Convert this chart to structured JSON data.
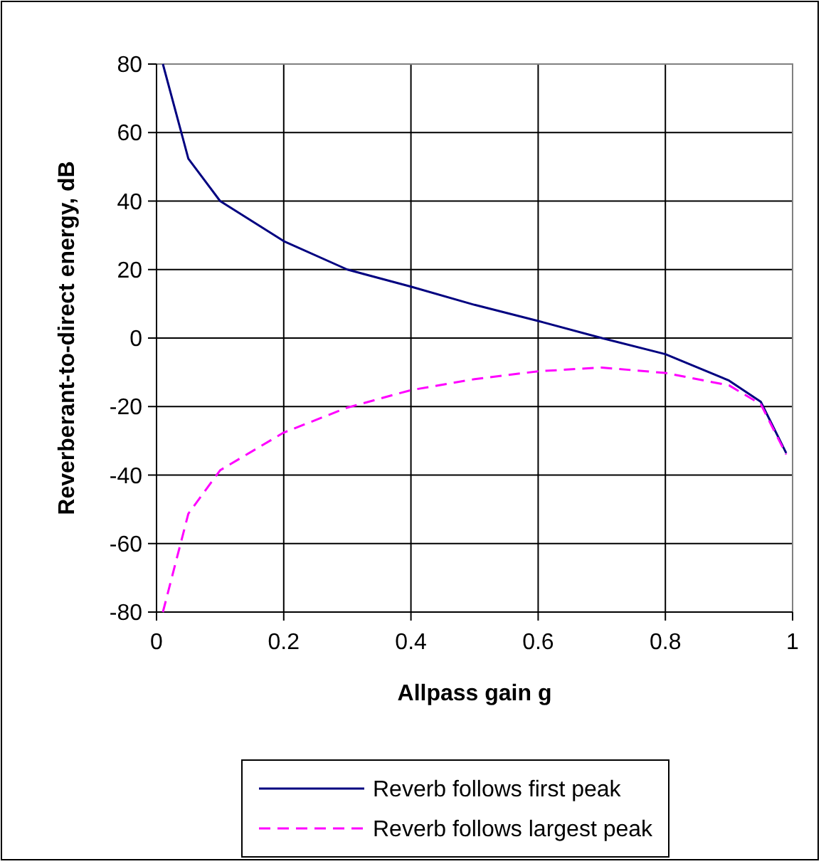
{
  "chart_data": {
    "type": "line",
    "xlabel": "Allpass gain g",
    "ylabel": "Reverberant-to-direct energy, dB",
    "xlim": [
      0,
      1
    ],
    "xticks": [
      0,
      0.2,
      0.4,
      0.6,
      0.8,
      1
    ],
    "ylim": [
      -80,
      80
    ],
    "yticks": [
      -80,
      -60,
      -40,
      -20,
      0,
      20,
      40,
      60,
      80
    ],
    "grid": true,
    "legend": "bottom",
    "marker": "none",
    "series": [
      {
        "name": "Reverb follows first peak",
        "color": "#000080",
        "line_style": "solid",
        "x": [
          0.01,
          0.05,
          0.1,
          0.2,
          0.3,
          0.4,
          0.5,
          0.6,
          0.7,
          0.8,
          0.9,
          0.95,
          0.99
        ],
        "values": [
          80,
          52.4,
          40,
          28.3,
          20,
          15,
          9.7,
          5,
          0,
          -4.7,
          -12.4,
          -18.6,
          -33.6
        ]
      },
      {
        "name": "Reverb follows largest peak",
        "color": "#ff00ff",
        "line_style": "dashed",
        "x": [
          0.01,
          0.05,
          0.1,
          0.2,
          0.3,
          0.4,
          0.5,
          0.6,
          0.7,
          0.8,
          0.9,
          0.95,
          0.99
        ],
        "values": [
          -80,
          -51.3,
          -38.6,
          -27.6,
          -20.3,
          -15.2,
          -12,
          -9.7,
          -8.6,
          -10.2,
          -13.8,
          -19.3,
          -34
        ]
      }
    ]
  }
}
